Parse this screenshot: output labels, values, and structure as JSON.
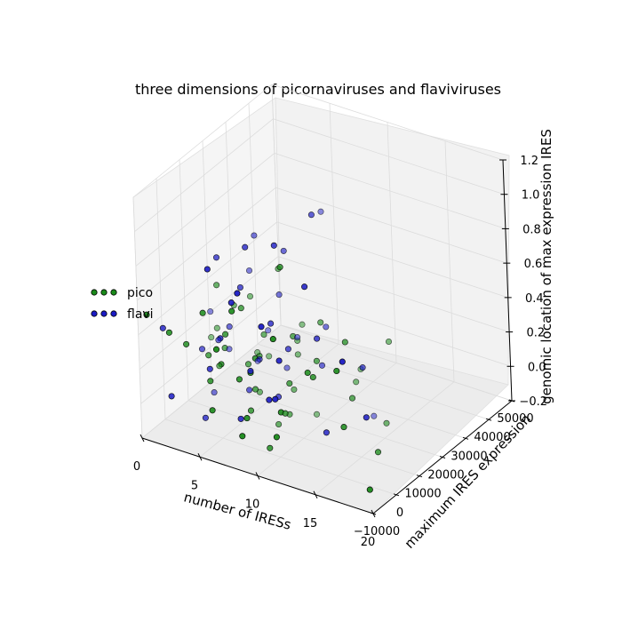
{
  "chart_data": {
    "type": "scatter3d",
    "title": "three dimensions of picornaviruses and flaviviruses",
    "xlabel": "number of IRESs",
    "ylabel": "maximum IRES expression",
    "zlabel": "genomic location of max expression IRES",
    "xlim": [
      0,
      20
    ],
    "ylim": [
      -10000,
      50000
    ],
    "zlim": [
      -0.2,
      1.2
    ],
    "x_ticks": [
      "0",
      "5",
      "10",
      "15",
      "20"
    ],
    "y_ticks": [
      "−10000",
      "0",
      "10000",
      "20000",
      "30000",
      "40000",
      "50000"
    ],
    "z_ticks": [
      "−0.2",
      "0.0",
      "0.2",
      "0.4",
      "0.6",
      "0.8",
      "1.0",
      "1.2"
    ],
    "grid": true,
    "legend_position": "left",
    "series": [
      {
        "name": "pico",
        "color": "#1a8a1a",
        "points": [
          [
            1,
            0,
            0.55
          ],
          [
            4,
            0,
            0.62
          ],
          [
            3,
            0,
            0.35
          ],
          [
            2,
            0,
            0.2
          ],
          [
            5,
            0,
            0.3
          ],
          [
            2,
            0,
            0.42
          ],
          [
            3,
            0,
            0.3
          ],
          [
            4,
            0,
            0.26
          ],
          [
            6,
            0,
            0.08
          ],
          [
            7,
            0,
            0.04
          ],
          [
            8,
            0,
            0.05
          ],
          [
            9,
            0,
            0.02
          ],
          [
            10,
            0,
            0.0
          ],
          [
            6,
            0,
            0.3
          ],
          [
            7,
            0,
            0.2
          ],
          [
            8,
            0,
            0.32
          ],
          [
            9,
            0,
            0.34
          ],
          [
            10,
            0,
            0.3
          ],
          [
            11,
            0,
            0.25
          ],
          [
            12,
            0,
            0.2
          ],
          [
            5,
            0,
            0.5
          ],
          [
            6,
            0,
            0.45
          ],
          [
            7,
            0,
            0.48
          ],
          [
            8,
            0,
            0.42
          ],
          [
            9,
            0,
            0.4
          ],
          [
            10,
            0,
            0.45
          ],
          [
            11,
            0,
            0.5
          ],
          [
            5,
            0,
            0.6
          ],
          [
            6,
            0,
            0.55
          ],
          [
            7,
            0,
            0.6
          ],
          [
            8,
            0,
            0.7
          ],
          [
            9,
            0,
            0.8
          ],
          [
            11,
            0,
            0.95
          ],
          [
            12,
            0,
            0.65
          ],
          [
            13,
            0,
            0.6
          ],
          [
            14,
            0,
            0.4
          ],
          [
            15,
            0,
            0.3
          ],
          [
            16,
            0,
            0.25
          ],
          [
            17,
            0,
            0.2
          ],
          [
            18,
            0,
            0.55
          ],
          [
            8,
            0,
            0.15
          ],
          [
            9,
            0,
            0.1
          ],
          [
            10,
            0,
            0.12
          ],
          [
            11,
            0,
            0.1
          ],
          [
            12,
            0,
            0.08
          ],
          [
            9,
            0,
            -0.08
          ],
          [
            10,
            0,
            -0.1
          ],
          [
            11,
            0,
            -0.05
          ],
          [
            13,
            0,
            0.4
          ],
          [
            14,
            0,
            0.45
          ],
          [
            15,
            0,
            0.25
          ],
          [
            16,
            0,
            0.6
          ],
          [
            17,
            0,
            0.55
          ],
          [
            18,
            0,
            0.1
          ],
          [
            19,
            0,
            0.05
          ],
          [
            20,
            0,
            -0.05
          ],
          [
            4,
            0,
            0.15
          ],
          [
            5,
            0,
            0.18
          ],
          [
            6,
            0,
            0.2
          ],
          [
            7,
            0,
            0.25
          ],
          [
            8,
            0,
            0.28
          ],
          [
            10,
            0,
            0.38
          ]
        ]
      },
      {
        "name": "flavi",
        "color": "#1c1cc4",
        "points": [
          [
            1,
            0,
            0.4
          ],
          [
            2,
            0,
            0.35
          ],
          [
            3,
            0,
            0.25
          ],
          [
            2,
            0,
            0.05
          ],
          [
            4,
            0,
            0.2
          ],
          [
            5,
            0,
            0.85
          ],
          [
            6,
            0,
            0.9
          ],
          [
            7,
            0,
            0.95
          ],
          [
            8,
            0,
            1.0
          ],
          [
            9,
            0,
            0.85
          ],
          [
            10,
            0,
            0.95
          ],
          [
            11,
            0,
            1.1
          ],
          [
            12,
            0,
            1.15
          ],
          [
            13,
            0,
            1.25
          ],
          [
            14,
            0,
            0.95
          ],
          [
            6,
            0,
            0.7
          ],
          [
            7,
            0,
            0.72
          ],
          [
            8,
            0,
            0.75
          ],
          [
            9,
            0,
            0.65
          ],
          [
            10,
            0,
            0.6
          ],
          [
            11,
            0,
            0.7
          ],
          [
            5,
            0,
            0.4
          ],
          [
            6,
            0,
            0.45
          ],
          [
            7,
            0,
            0.35
          ],
          [
            8,
            0,
            0.3
          ],
          [
            9,
            0,
            0.35
          ],
          [
            10,
            0,
            0.4
          ],
          [
            11,
            0,
            0.45
          ],
          [
            12,
            0,
            0.5
          ],
          [
            13,
            0,
            0.55
          ],
          [
            14,
            0,
            0.6
          ],
          [
            18,
            0,
            0.65
          ],
          [
            4,
            0,
            0.3
          ],
          [
            5,
            0,
            0.25
          ],
          [
            6,
            0,
            0.15
          ],
          [
            7,
            0,
            0.1
          ],
          [
            8,
            0,
            0.05
          ],
          [
            9,
            0,
            0.2
          ],
          [
            10,
            0,
            0.15
          ],
          [
            11,
            0,
            0.25
          ],
          [
            3,
            0,
            -0.05
          ],
          [
            4,
            0,
            -0.08
          ],
          [
            12,
            0,
            0.3
          ],
          [
            13,
            0,
            0.35
          ],
          [
            15,
            0,
            0.1
          ],
          [
            16,
            0,
            0.05
          ],
          [
            17,
            0,
            0.45
          ],
          [
            19,
            0,
            0.3
          ]
        ]
      }
    ]
  }
}
